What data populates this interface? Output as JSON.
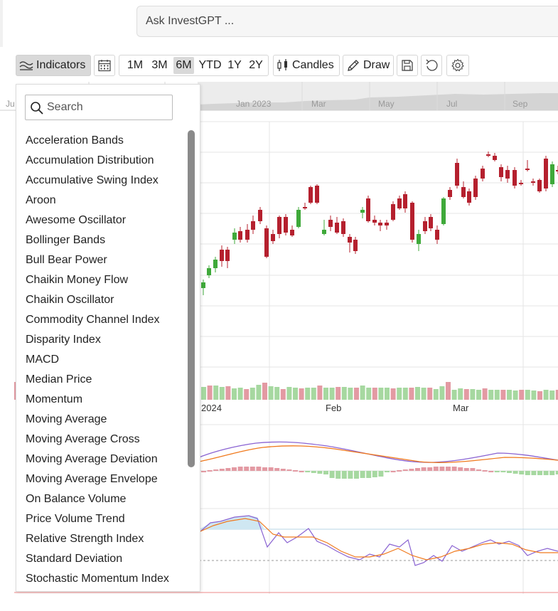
{
  "ask": {
    "placeholder": "Ask InvestGPT ..."
  },
  "toolbar": {
    "indicators_label": "Indicators",
    "ranges": [
      "1M",
      "3M",
      "6M",
      "YTD",
      "1Y",
      "2Y"
    ],
    "active_range": "6M",
    "candles_label": "Candles",
    "draw_label": "Draw"
  },
  "navigator": {
    "labels": [
      "Ju",
      "Jan 2023",
      "Mar",
      "May",
      "Jul",
      "Sep"
    ]
  },
  "chart": {
    "x_labels": [
      "2024",
      "Feb",
      "Mar"
    ],
    "colors": {
      "up": "#3fa93a",
      "down": "#b5202e",
      "vol_up": "#a6d8a0",
      "vol_down": "#e39aa3",
      "line1": "#8a63d2",
      "line2": "#f07a1e"
    }
  },
  "indicator_menu": {
    "search_placeholder": "Search",
    "items": [
      "Acceleration Bands",
      "Accumulation Distribution",
      "Accumulative Swing Index",
      "Aroon",
      "Awesome Oscillator",
      "Bollinger Bands",
      "Bull Bear Power",
      "Chaikin Money Flow",
      "Chaikin Oscillator",
      "Commodity Channel Index",
      "Disparity Index",
      "MACD",
      "Median Price",
      "Momentum",
      "Moving Average",
      "Moving Average Cross",
      "Moving Average Deviation",
      "Moving Average Envelope",
      "On Balance Volume",
      "Price Volume Trend",
      "Relative Strength Index",
      "Standard Deviation",
      "Stochastic Momentum Index"
    ]
  }
}
